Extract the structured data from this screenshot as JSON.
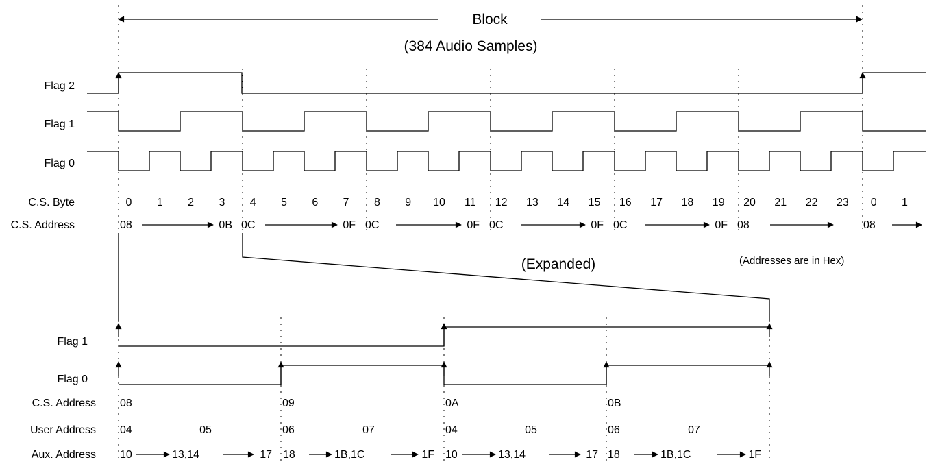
{
  "top": {
    "title": "Block",
    "subtitle": "(384 Audio Samples)",
    "row_labels": {
      "flag2": "Flag 2",
      "flag1": "Flag 1",
      "flag0": "Flag 0",
      "cs_byte": "C.S. Byte",
      "cs_address": "C.S. Address"
    },
    "cs_bytes": [
      "0",
      "1",
      "2",
      "3",
      "4",
      "5",
      "6",
      "7",
      "8",
      "9",
      "10",
      "11",
      "12",
      "13",
      "14",
      "15",
      "16",
      "17",
      "18",
      "19",
      "20",
      "21",
      "22",
      "23",
      "0",
      "1"
    ],
    "cs_address_segments": [
      {
        "start": "08",
        "end": "0B"
      },
      {
        "start": "0C",
        "end": "0F"
      },
      {
        "start": "0C",
        "end": "0F"
      },
      {
        "start": "0C",
        "end": "0F"
      },
      {
        "start": "0C",
        "end": "0F"
      },
      {
        "start": "08",
        "end": ""
      }
    ],
    "expanded_label": "(Expanded)",
    "hex_note": "(Addresses are in Hex)"
  },
  "bottom": {
    "row_labels": {
      "flag1": "Flag 1",
      "flag0": "Flag 0",
      "cs_address": "C.S. Address",
      "user_address": "User Address",
      "aux_address": "Aux. Address"
    },
    "cs_addresses": [
      "08",
      "09",
      "0A",
      "0B"
    ],
    "user_addresses": [
      "04",
      "05",
      "06",
      "07",
      "04",
      "05",
      "06",
      "07"
    ],
    "aux_segments": [
      {
        "start": "10",
        "mid": "13,14",
        "end": "17"
      },
      {
        "start": "18",
        "mid": "1B,1C",
        "end": "1F"
      },
      {
        "start": "10",
        "mid": "13,14",
        "end": "17"
      },
      {
        "start": "18",
        "mid": "1B,1C",
        "end": "1F"
      }
    ]
  }
}
